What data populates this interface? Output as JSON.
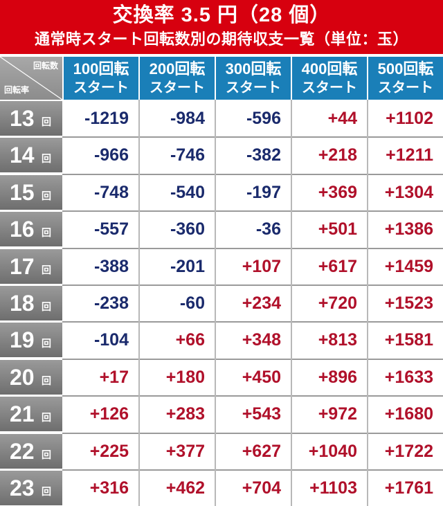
{
  "title": {
    "main": "交換率 3.5 円（28 個）",
    "sub": "通常時スタート回転数別の期待収支一覧（単位：玉）"
  },
  "corner": {
    "top_label": "回転数",
    "bottom_label": "回転率"
  },
  "columns": [
    {
      "line1": "100回転",
      "line2": "スタート"
    },
    {
      "line1": "200回転",
      "line2": "スタート"
    },
    {
      "line1": "300回転",
      "line2": "スタート"
    },
    {
      "line1": "400回転",
      "line2": "スタート"
    },
    {
      "line1": "500回転",
      "line2": "スタート"
    }
  ],
  "row_unit": "回",
  "colors": {
    "title_bg": "#d7000f",
    "header_bg": "#1a7fb8",
    "negative": "#1a2a6c",
    "positive": "#b0102a"
  },
  "rows": [
    {
      "rate": "13",
      "values": [
        "-1219",
        "-984",
        "-596",
        "+44",
        "+1102"
      ]
    },
    {
      "rate": "14",
      "values": [
        "-966",
        "-746",
        "-382",
        "+218",
        "+1211"
      ]
    },
    {
      "rate": "15",
      "values": [
        "-748",
        "-540",
        "-197",
        "+369",
        "+1304"
      ]
    },
    {
      "rate": "16",
      "values": [
        "-557",
        "-360",
        "-36",
        "+501",
        "+1386"
      ]
    },
    {
      "rate": "17",
      "values": [
        "-388",
        "-201",
        "+107",
        "+617",
        "+1459"
      ]
    },
    {
      "rate": "18",
      "values": [
        "-238",
        "-60",
        "+234",
        "+720",
        "+1523"
      ]
    },
    {
      "rate": "19",
      "values": [
        "-104",
        "+66",
        "+348",
        "+813",
        "+1581"
      ]
    },
    {
      "rate": "20",
      "values": [
        "+17",
        "+180",
        "+450",
        "+896",
        "+1633"
      ]
    },
    {
      "rate": "21",
      "values": [
        "+126",
        "+283",
        "+543",
        "+972",
        "+1680"
      ]
    },
    {
      "rate": "22",
      "values": [
        "+225",
        "+377",
        "+627",
        "+1040",
        "+1722"
      ]
    },
    {
      "rate": "23",
      "values": [
        "+316",
        "+462",
        "+704",
        "+1103",
        "+1761"
      ]
    }
  ]
}
